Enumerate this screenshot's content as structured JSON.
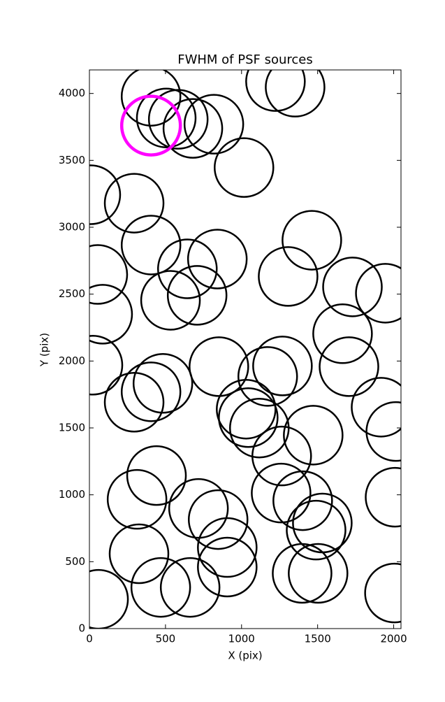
{
  "chart_data": {
    "type": "scatter",
    "title": "FWHM of PSF sources",
    "x_label": "X (pix)",
    "y_label": "Y (pix)",
    "xlim": [
      0,
      2048
    ],
    "ylim": [
      0,
      4176
    ],
    "xticks": [
      0,
      500,
      1000,
      1500,
      2000
    ],
    "yticks": [
      0,
      500,
      1000,
      1500,
      2000,
      2500,
      3000,
      3500,
      4000
    ],
    "grid": false,
    "series": [
      {
        "color": "#000000",
        "x": [
          405,
          505,
          584,
          680,
          818,
          1016,
          1223,
          1352,
          9,
          294,
          405,
          55,
          87,
          23,
          644,
          533,
          708,
          841,
          1462,
          1306,
          1729,
          1945,
          1664,
          1706,
          851,
          1269,
          1172,
          483,
          405,
          294,
          1030,
          1117,
          1917,
          2014,
          1471,
          1264,
          441,
          313,
          717,
          846,
          1260,
          1402,
          1531,
          1490,
          2009,
          326,
          469,
          662,
          906,
          906,
          60,
          1398,
          1503,
          2005,
          1044
        ],
        "values": [
          3979,
          3817,
          3807,
          3739,
          3770,
          3446,
          4089,
          4047,
          3243,
          3180,
          2867,
          2647,
          2350,
          1969,
          2689,
          2454,
          2491,
          2762,
          2903,
          2632,
          2554,
          2507,
          2204,
          1958,
          1958,
          1963,
          1885,
          1833,
          1770,
          1692,
          1640,
          1499,
          1655,
          1473,
          1446,
          1290,
          1144,
          966,
          898,
          815,
          1013,
          956,
          789,
          736,
          982,
          559,
          308,
          308,
          606,
          460,
          219,
          413,
          413,
          266,
          1577
        ]
      },
      {
        "color": "#ff00ff",
        "x": [
          405
        ],
        "values": [
          3760
        ]
      }
    ]
  }
}
